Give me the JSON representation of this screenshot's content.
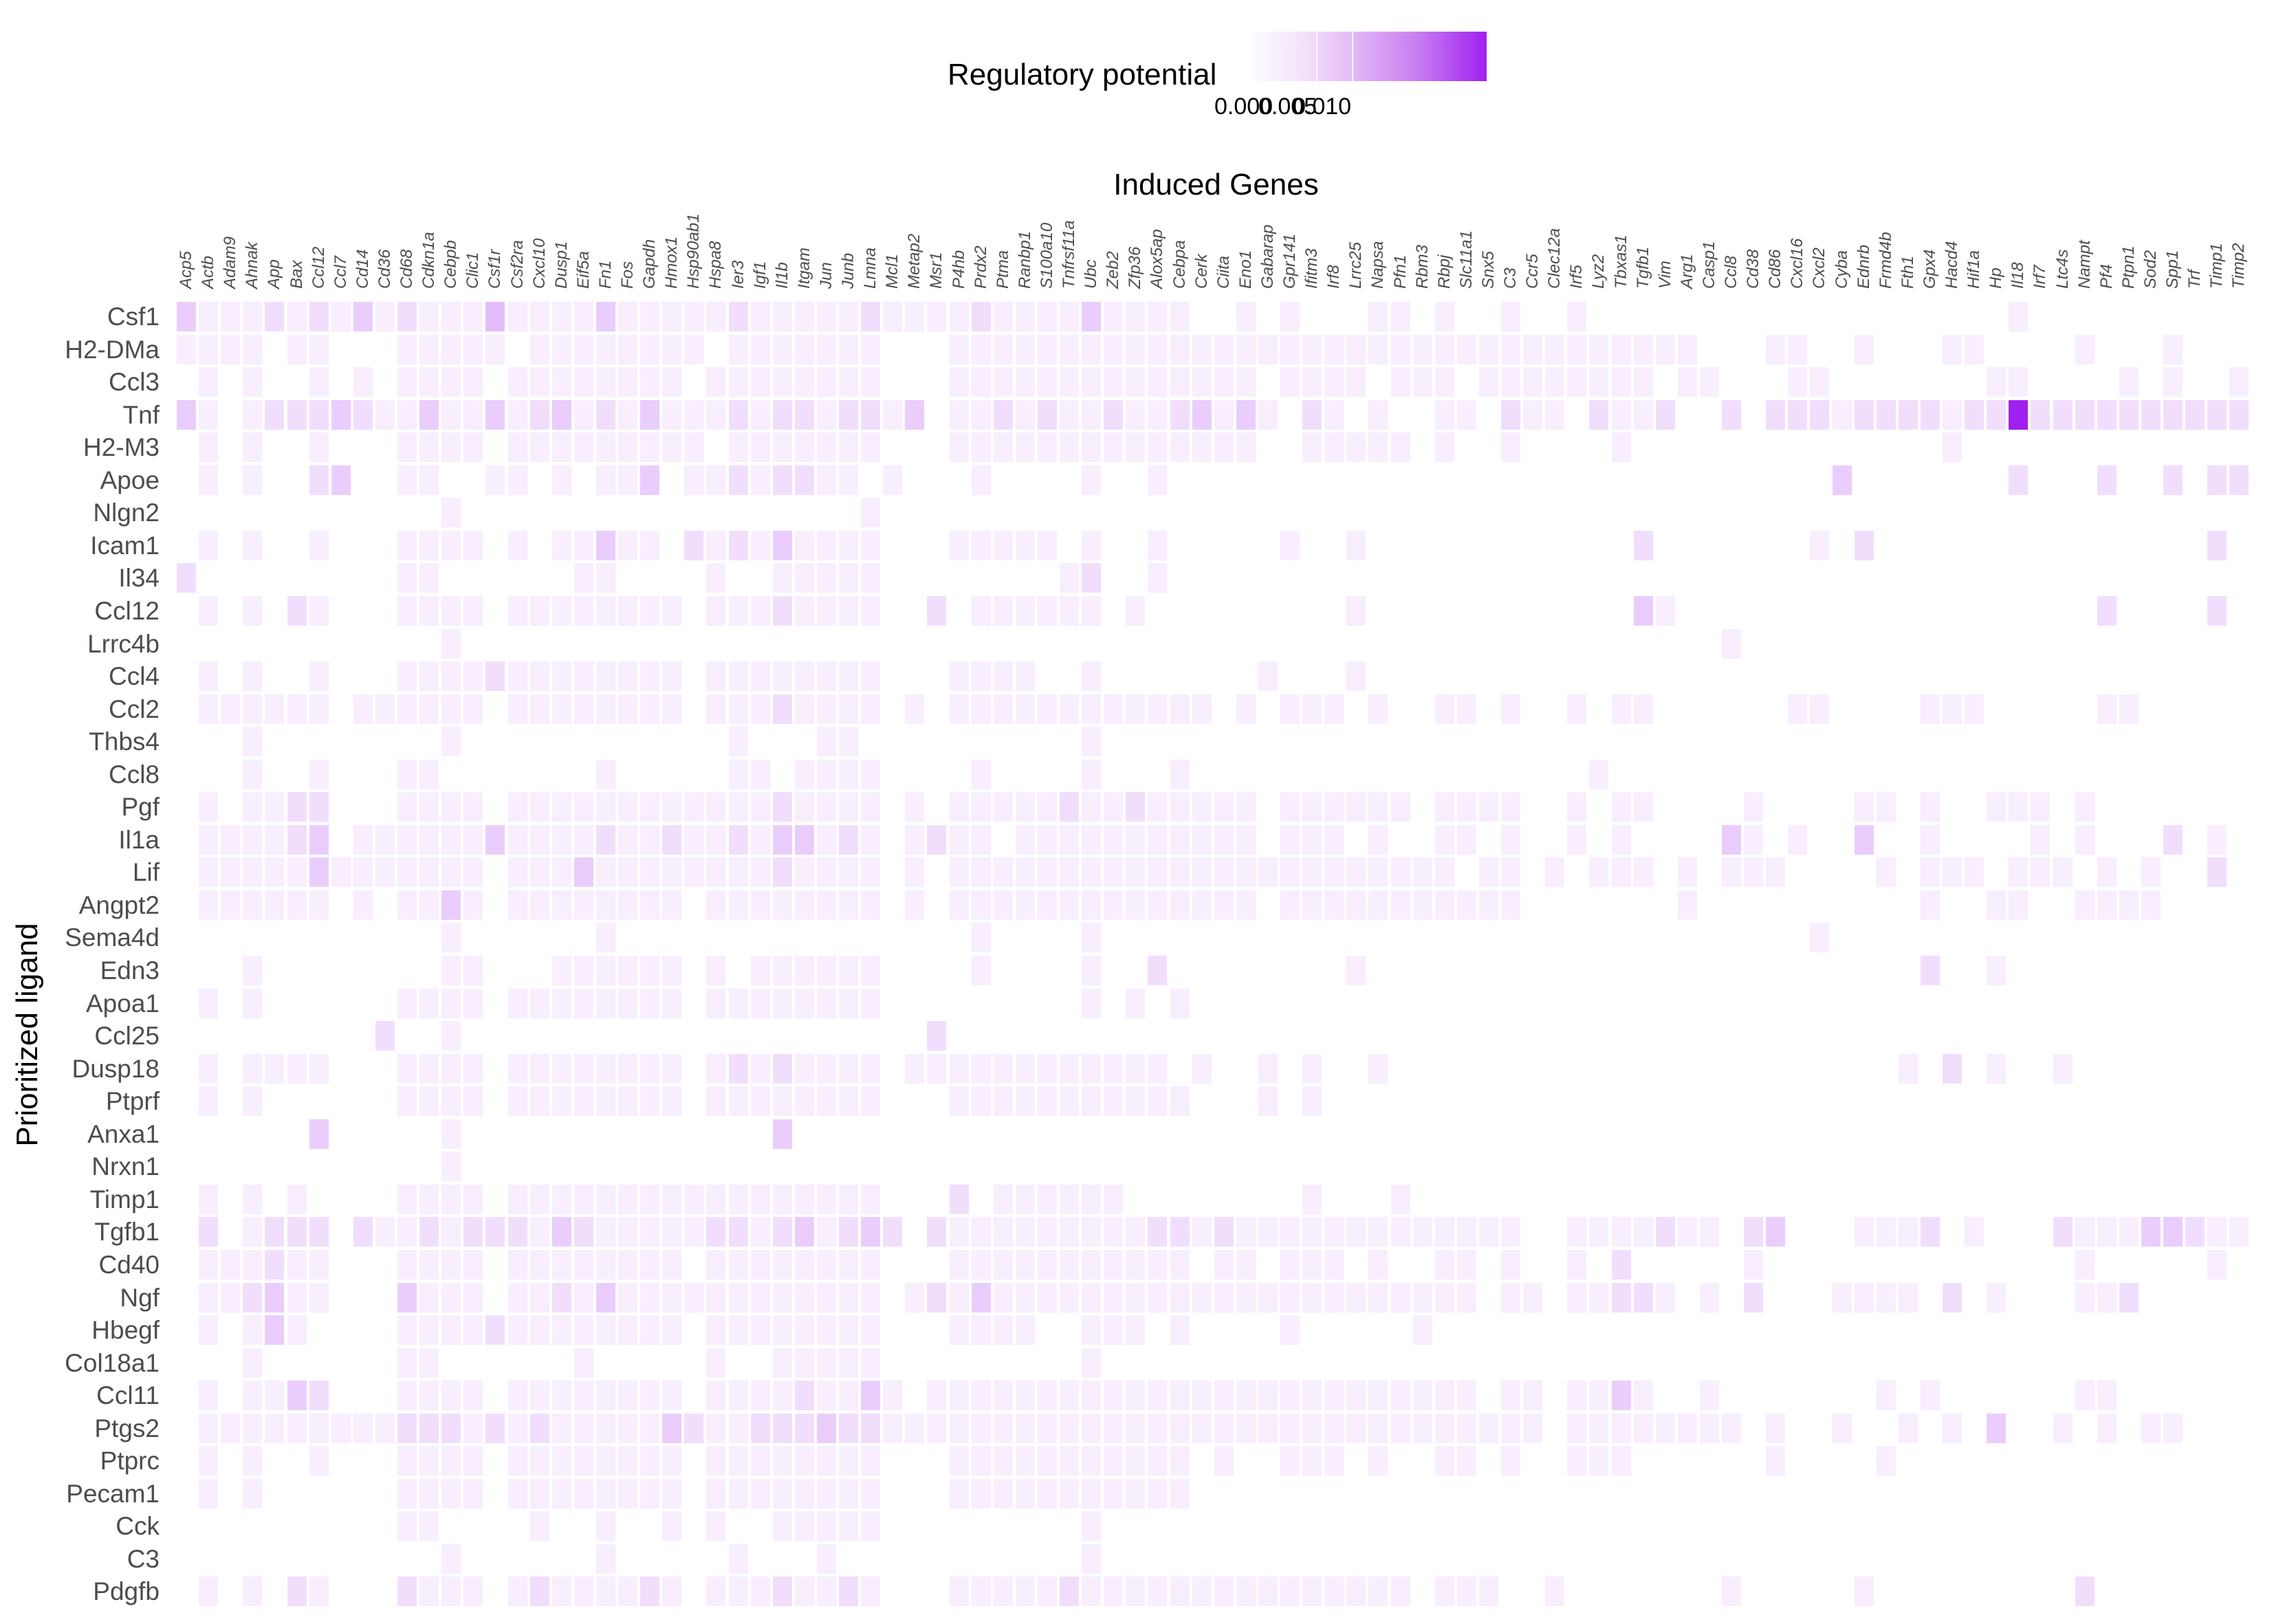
{
  "legend": {
    "title": "Regulatory potential",
    "labels": [
      "0.000",
      "0.005",
      "0.010"
    ],
    "color_low": "#ffffff",
    "color_high": "#a020f0"
  },
  "axes": {
    "x_title": "Induced Genes",
    "y_title": "Prioritized ligand"
  },
  "chart_data": {
    "type": "heatmap",
    "title": "",
    "xlabel": "Induced Genes",
    "ylabel": "Prioritized ligand",
    "colorbar": {
      "label": "Regulatory potential",
      "ticks": [
        0.0,
        0.005,
        0.01
      ],
      "low": "#ffffff",
      "high": "#a020f0"
    },
    "value_encoding": "each row string has one digit per column; 0 = no value, 1-9 = approx regulatory potential in steps of ~0.0015 (9 ≈ 0.013)",
    "columns": [
      "Acp5",
      "Actb",
      "Adam9",
      "Ahnak",
      "App",
      "Bax",
      "Ccl12",
      "Ccl7",
      "Cd14",
      "Cd36",
      "Cd68",
      "Cdkn1a",
      "Cebpb",
      "Clic1",
      "Csf1r",
      "Csf2ra",
      "Cxcl10",
      "Dusp1",
      "Eif5a",
      "Fn1",
      "Fos",
      "Gapdh",
      "Hmox1",
      "Hsp90ab1",
      "Hspa8",
      "Ier3",
      "Igf1",
      "Il1b",
      "Itgam",
      "Jun",
      "Junb",
      "Lmna",
      "Mcl1",
      "Metap2",
      "Msr1",
      "P4hb",
      "Prdx2",
      "Ptma",
      "Ranbp1",
      "S100a10",
      "Tnfrsf11a",
      "Ubc",
      "Zeb2",
      "Zfp36",
      "Alox5ap",
      "Cebpa",
      "Cerk",
      "Ciita",
      "Eno1",
      "Gabarap",
      "Gpr141",
      "Ifitm3",
      "Irf8",
      "Lrrc25",
      "Napsa",
      "Pfn1",
      "Rbm3",
      "Rbpj",
      "Slc11a1",
      "Snx5",
      "C3",
      "Ccr5",
      "Clec12a",
      "Irf5",
      "Lyz2",
      "Tbxas1",
      "Tgfb1",
      "Vim",
      "Arg1",
      "Casp1",
      "Ccl8",
      "Cd38",
      "Cd86",
      "Cxcl16",
      "Cxcl2",
      "Cyba",
      "Ednrb",
      "Frmd4b",
      "Fth1",
      "Gpx4",
      "Hacd4",
      "Hif1a",
      "Hp",
      "Il18",
      "Irf7",
      "Ltc4s",
      "Nampt",
      "Pf4",
      "Ptpn1",
      "Sod2",
      "Spp1",
      "Trf",
      "Timp1",
      "Timp2"
    ],
    "rows": [
      {
        "ligand": "Csf1",
        "v": "3111212131211141111311111211111211112111131111001010001101001001000000000000000000010000000000"
      },
      {
        "ligand": "H2-DMa",
        "v": "1111011000111110111111110111111100011111111111111111111111111111111110001100100011000010001000"
      },
      {
        "ligand": "Ccl3",
        "v": "0101001010111101111111101111111100011111111111111011110111011111111011000110000000110000101001"
      },
      {
        "ligand": "Tnf",
        "v": "3101222321131131231213111212212213011212112112313102101001102110211200202221222212292222222222"
      },
      {
        "ligand": "H2-M3",
        "v": "0101001000111101111111110111111100011111111111111001111101001000010000000000000010000000000000"
      },
      {
        "ligand": "Apoe",
        "v": "0101002300110011010113011212211010001000010010000000000000000000000000000003000000020002002022"
      },
      {
        "ligand": "Nlgn2",
        "v": "0000000000001000000000000000000100000000000000000000000000000000000000000000000000000000000000"
      },
      {
        "ligand": "Icam1",
        "v": "0101001000111101011311021213111100011111010010000010010000000000002000000010200000000000000020"
      },
      {
        "ligand": "Il34",
        "v": "2000000000110000001100001001111100000000120010000000000000000000000000000000000000000000000000"
      },
      {
        "ligand": "Ccl12",
        "v": "0101021000111101111111101112111100201111110100000000010000000000003100000000000000000002000020"
      },
      {
        "ligand": "Lrrc4b",
        "v": "0000000000001000000000000000000000000000000000000000000000000000000000100000000000000000000000"
      },
      {
        "ligand": "Ccl4",
        "v": "0101001000111121111111101111111100011110010000000100010000000000000000000000000000000000000000"
      },
      {
        "ligand": "Ccl2",
        "v": "0111111011111101111111101112111101011111111111101011101001101001011000000110000111000001100000"
      },
      {
        "ligand": "Thbs4",
        "v": "0001000000001000000000000100011000000000010000000000000000000000000000000000000000000000000000"
      },
      {
        "ligand": "Ccl8",
        "v": "0001001000110000000100000110111100001000010001000000000000000000100000000000000000000000000000"
      },
      {
        "ligand": "Pgf",
        "v": "0101122000111101111111111112111101011111211211111011111101111001011000010000110100111010000000"
      },
      {
        "ligand": "Il1a",
        "v": "0111123011111131111211211213312101211011111111111011101001101001010000310100300100001010002010"
      },
      {
        "ligand": "Lif",
        "v": "0111113111111101113111111112111101011111111111111111111111011010111010111000010111011101010020"
      },
      {
        "ligand": "Angpt2",
        "v": "0111111010113101111111101111111101011111111111111011111111111000000010000000000100110011110000"
      },
      {
        "ligand": "Sema4d",
        "v": "0000000000001000000100000000000000001000010000000000000000000000000000000010000000000000000000"
      },
      {
        "ligand": "Edn3",
        "v": "0001000000001100011111101011111100001000010020000000010000000000000000000000000200100000000000"
      },
      {
        "ligand": "Apoa1",
        "v": "0101000000111101111111101111111100000000010101000000000000000000000000000000000000000000000000"
      },
      {
        "ligand": "Ccl25",
        "v": "0000000002001000000000000000000000200000000000000000000000000000000000000000000000000000000000"
      },
      {
        "ligand": "Dusp18",
        "v": "0101111000111101111111101212111101111111111110100101001000000000000000000000001020100100000000"
      },
      {
        "ligand": "Ptprf",
        "v": "0101000000111101111111101111111100011111111111000101000000000000000000000000000000000000000000"
      },
      {
        "ligand": "Anxa1",
        "v": "0000003000001000000000000003000000000000000000000000000000000000000000000000000000000000000000"
      },
      {
        "ligand": "Nrxn1",
        "v": "0000000000001000000000000000000000000000000000000000000000000000000000000000000000000000000000"
      },
      {
        "ligand": "Timp1",
        "v": "0101010000111101111111111111111100020111111000000001000100000000000000000000000000000000000000"
      },
      {
        "ligand": "Tgfb1",
        "v": "0201222021121222132111112212312320211111111122121111111111111001111211023000111201000211133211"
      },
      {
        "ligand": "Cd40",
        "v": "0111211000111101111111101111111100011111111111011011101001101001020000010000000000000010000010"
      },
      {
        "ligand": "Ngf",
        "v": "0112311000311101121311111111111101213111111111111111111111101101122101020001111020100011200000"
      },
      {
        "ligand": "Hbegf",
        "v": "0101310000111121111111101111111100011110011101000010000010000000000000000000000000000000000000"
      },
      {
        "ligand": "Col18a1",
        "v": "0001000000110000001000001001111100000000010000000000000000000000000000000000000000000000000000"
      },
      {
        "ligand": "Ccl11",
        "v": "0101132000111101111111101111211310111111111111111111111111101101131001000000010100000011000000"
      },
      {
        "ligand": "Ptgs2",
        "v": "0111111111222121211111321122232211111111111111111111111111111101111111101001001010300101011000"
      },
      {
        "ligand": "Ptprc",
        "v": "0101001000111101111111101111111100011111111111010011101001101001110000001000010000000000000000"
      },
      {
        "ligand": "Pecam1",
        "v": "0101000000111101111111101111111100011111111111000000000000000000000000000000000000000000000000"
      },
      {
        "ligand": "Cck",
        "v": "0000000000110000100100101001111100000000010000000000000000000000000000000000000000000000000000"
      },
      {
        "ligand": "C3",
        "v": "0000000000001000000100000100010000000000010000000000000000000000000000000000000000000000000000"
      },
      {
        "ligand": "Pdgfb",
        "v": "0101021000211101211112101112112100011111211111111111111101110010000000100000100000000020000000"
      }
    ]
  }
}
